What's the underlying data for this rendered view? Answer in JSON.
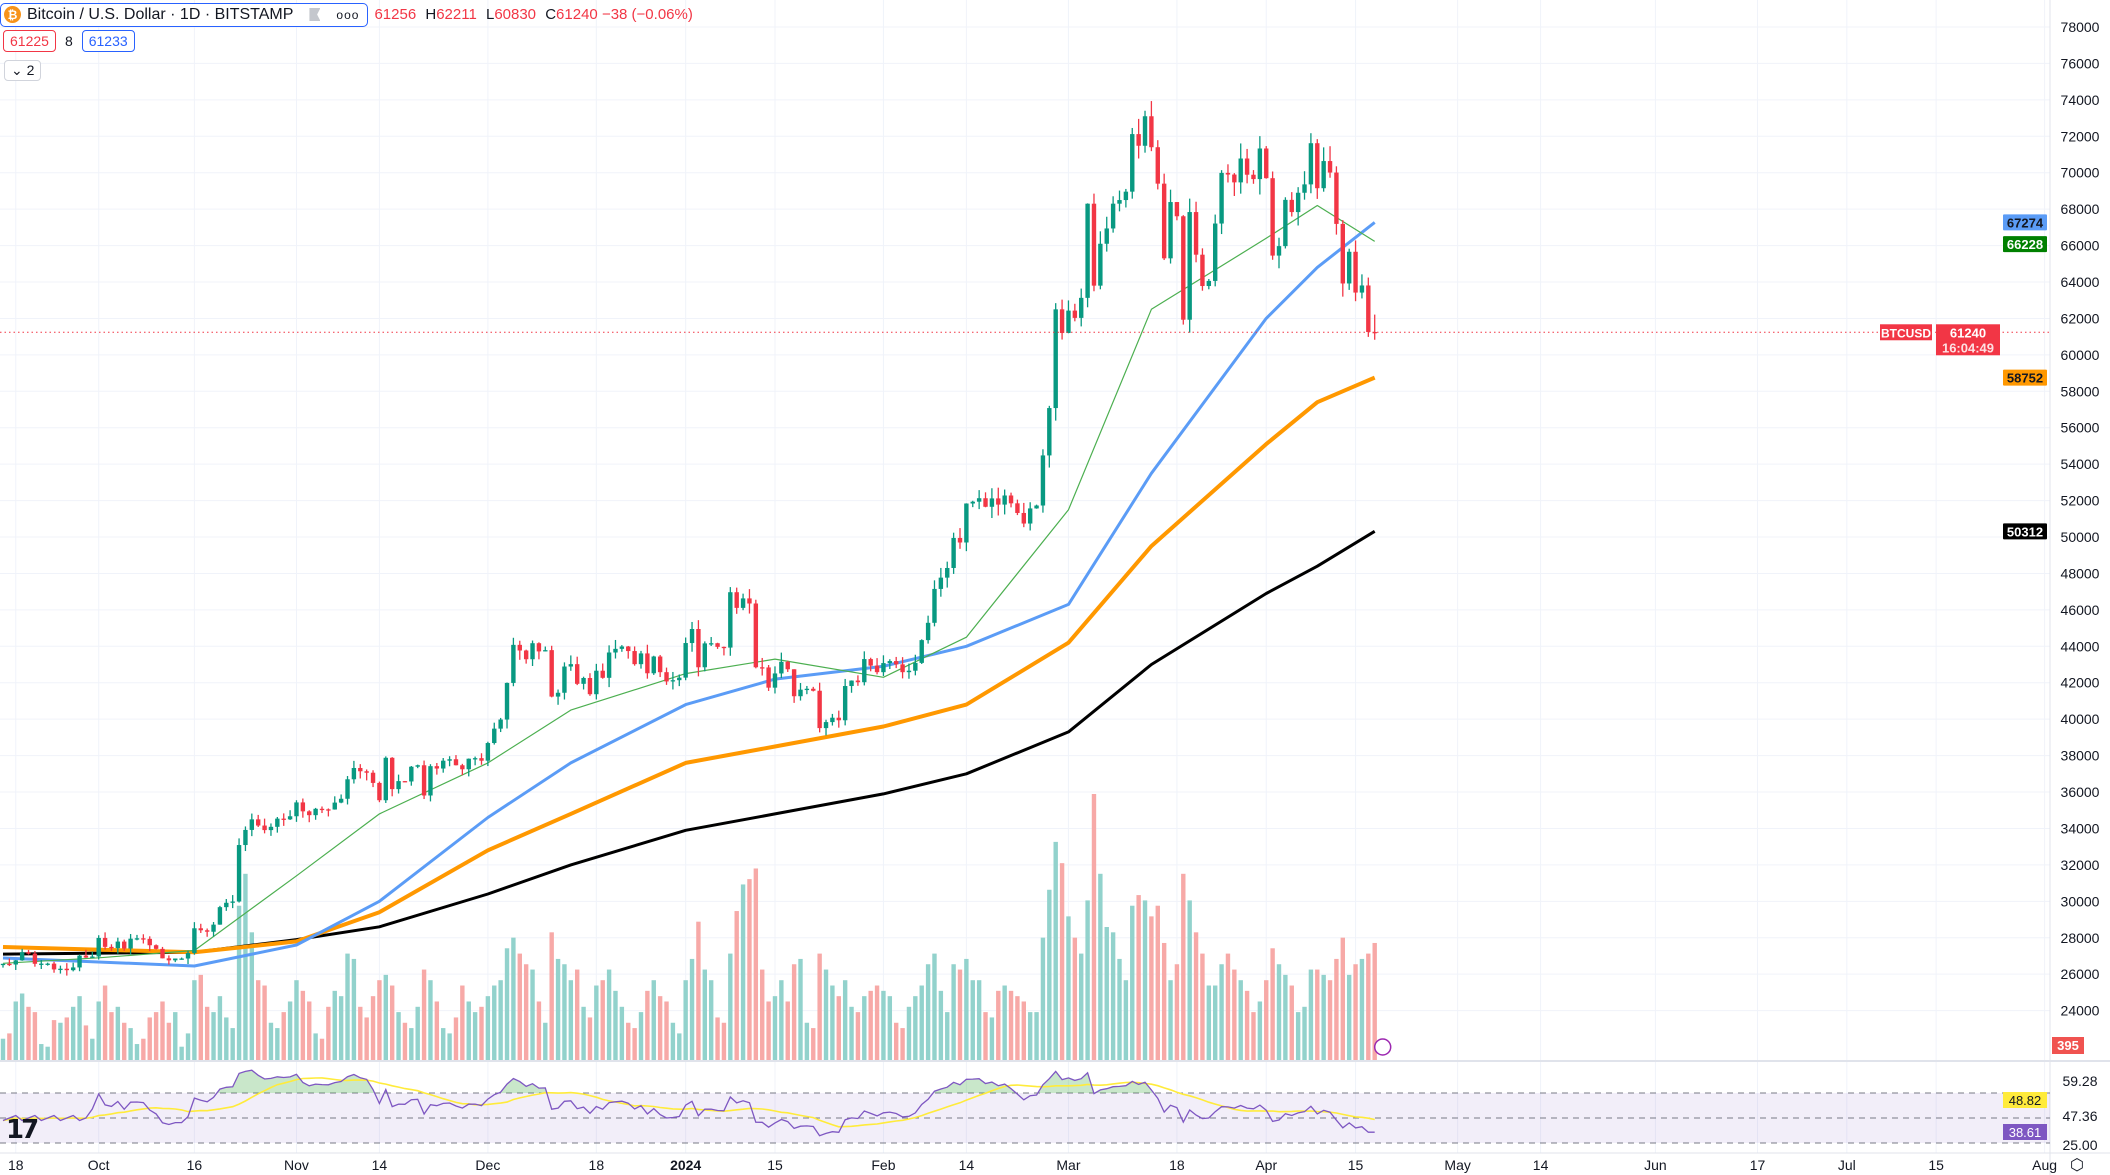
{
  "header": {
    "symbol_title": "Bitcoin / U.S. Dollar · 1D · BITSTAMP",
    "symbol_icon": "bitcoin-icon",
    "more_label": "ooo",
    "open": "61256",
    "high_label": "H",
    "high": "62211",
    "low_label": "L",
    "low": "60830",
    "close_label": "C",
    "close": "61240",
    "change": "−38 (−0.06%)",
    "sell_price": "61225",
    "spread": "8",
    "buy_price": "61233",
    "collapse_label": "2"
  },
  "colors": {
    "up": "#089981",
    "down": "#f23645",
    "vol_up": "#92d2cc",
    "vol_down": "#f7a9a7",
    "ma20": "#4caf50",
    "ma50": "#5b9cf6",
    "ma100": "#ff9800",
    "ma200": "#000000",
    "rsi": "#7e57c2",
    "rsi_ma": "#ffeb3b"
  },
  "price_axis": {
    "labels": [
      78000,
      76000,
      74000,
      72000,
      70000,
      68000,
      66000,
      64000,
      62000,
      60000,
      58000,
      56000,
      54000,
      52000,
      50000,
      48000,
      46000,
      44000,
      42000,
      40000,
      38000,
      36000,
      34000,
      32000,
      30000,
      28000,
      26000,
      24000
    ],
    "tags": {
      "ma50": "67274",
      "ma20": "66228",
      "symbol": "BTCUSD",
      "last_price": "61240",
      "countdown": "16:04:49",
      "ma100": "58752",
      "ma200": "50312",
      "volume": "395"
    }
  },
  "rsi_axis": {
    "labels": [
      "59.28",
      "47.36",
      "25.00"
    ],
    "tags": {
      "rsi_ma": "48.82",
      "rsi": "38.61"
    }
  },
  "time_axis": [
    {
      "label": "18",
      "date": "2023-09-18"
    },
    {
      "label": "Oct",
      "date": "2023-10-01"
    },
    {
      "label": "16",
      "date": "2023-10-16"
    },
    {
      "label": "Nov",
      "date": "2023-11-01"
    },
    {
      "label": "14",
      "date": "2023-11-14"
    },
    {
      "label": "Dec",
      "date": "2023-12-01"
    },
    {
      "label": "18",
      "date": "2023-12-18"
    },
    {
      "label": "2024",
      "date": "2024-01-01"
    },
    {
      "label": "15",
      "date": "2024-01-15"
    },
    {
      "label": "Feb",
      "date": "2024-02-01"
    },
    {
      "label": "14",
      "date": "2024-02-14"
    },
    {
      "label": "Mar",
      "date": "2024-03-01"
    },
    {
      "label": "18",
      "date": "2024-03-18"
    },
    {
      "label": "Apr",
      "date": "2024-04-01"
    },
    {
      "label": "15",
      "date": "2024-04-15"
    },
    {
      "label": "May",
      "date": "2024-05-01"
    },
    {
      "label": "14",
      "date": "2024-05-14"
    },
    {
      "label": "Jun",
      "date": "2024-06-01"
    },
    {
      "label": "17",
      "date": "2024-06-17"
    },
    {
      "label": "Jul",
      "date": "2024-07-01"
    },
    {
      "label": "15",
      "date": "2024-07-15"
    },
    {
      "label": "Aug",
      "date": "2024-08-01"
    }
  ],
  "chart_data": {
    "type": "candlestick",
    "start_date": "2023-09-16",
    "y_range": [
      22000,
      78000
    ],
    "closes": [
      26570,
      26530,
      26760,
      27210,
      27130,
      26570,
      26580,
      26580,
      26260,
      26300,
      26220,
      26370,
      27020,
      26910,
      26970,
      27990,
      27500,
      27430,
      27790,
      27410,
      27950,
      27970,
      27940,
      27590,
      27390,
      26870,
      26760,
      26860,
      26860,
      27160,
      28520,
      28410,
      28330,
      28720,
      29680,
      29920,
      29990,
      33090,
      33920,
      34500,
      34160,
      33910,
      34090,
      34540,
      34500,
      34670,
      35430,
      34940,
      34730,
      35080,
      35050,
      35040,
      35420,
      35630,
      36700,
      37320,
      37140,
      37060,
      36500,
      35550,
      37880,
      36160,
      36600,
      36580,
      37390,
      37470,
      35810,
      37420,
      37290,
      37720,
      37800,
      37470,
      37250,
      37830,
      37860,
      37720,
      38690,
      39480,
      39980,
      41990,
      44080,
      43770,
      43290,
      44170,
      43720,
      43790,
      41240,
      41450,
      42890,
      43020,
      41940,
      42260,
      41370,
      42660,
      42270,
      43660,
      43860,
      43990,
      43740,
      43020,
      43610,
      42520,
      43440,
      42580,
      42070,
      42140,
      42280,
      44180,
      44950,
      42850,
      44160,
      44170,
      43970,
      43930,
      46970,
      46110,
      46630,
      46350,
      42850,
      42840,
      41730,
      42510,
      43150,
      42740,
      41260,
      41620,
      41670,
      41560,
      39510,
      39840,
      40080,
      39940,
      41820,
      42120,
      42030,
      43300,
      42940,
      42580,
      43080,
      43190,
      43010,
      42580,
      42660,
      43090,
      44340,
      45290,
      47150,
      47770,
      48300,
      49950,
      49700,
      51840,
      51940,
      52130,
      51660,
      52120,
      51780,
      52280,
      51850,
      51320,
      50740,
      51570,
      51730,
      54480,
      57080,
      62500,
      61200,
      62430,
      62030,
      63130,
      68300,
      63800,
      66100,
      66940,
      68300,
      68500,
      68960,
      72120,
      71480,
      73100,
      71400,
      69400,
      65300,
      68390,
      67610,
      61930,
      67840,
      65500,
      63780,
      64060,
      67210,
      69990,
      69900,
      69470,
      70780,
      69890,
      69650,
      71330,
      69700,
      65450,
      65970,
      68510,
      67840,
      68900,
      69360,
      71620,
      69150,
      70640,
      70010,
      67190,
      63920,
      65660,
      63420,
      63810,
      61256,
      61240
    ],
    "volumes": [
      8,
      10,
      22,
      25,
      20,
      18,
      6,
      5,
      15,
      14,
      16,
      20,
      24,
      13,
      8,
      22,
      28,
      18,
      20,
      14,
      12,
      6,
      8,
      16,
      18,
      22,
      14,
      18,
      5,
      10,
      30,
      32,
      20,
      18,
      24,
      16,
      12,
      58,
      70,
      48,
      30,
      28,
      14,
      12,
      18,
      22,
      30,
      26,
      22,
      10,
      8,
      20,
      26,
      24,
      40,
      38,
      20,
      16,
      24,
      30,
      32,
      28,
      18,
      14,
      12,
      20,
      34,
      30,
      22,
      12,
      10,
      16,
      28,
      22,
      18,
      20,
      24,
      28,
      30,
      42,
      46,
      40,
      36,
      34,
      22,
      14,
      48,
      38,
      36,
      30,
      34,
      20,
      16,
      28,
      30,
      34,
      26,
      20,
      14,
      12,
      18,
      26,
      30,
      24,
      22,
      14,
      10,
      30,
      38,
      52,
      34,
      30,
      16,
      14,
      40,
      56,
      66,
      68,
      72,
      34,
      22,
      24,
      30,
      22,
      36,
      38,
      14,
      12,
      40,
      34,
      28,
      24,
      30,
      20,
      18,
      24,
      26,
      28,
      26,
      24,
      14,
      12,
      20,
      24,
      28,
      36,
      40,
      26,
      18,
      36,
      34,
      38,
      30,
      30,
      18,
      16,
      26,
      28,
      26,
      24,
      22,
      18,
      18,
      46,
      64,
      82,
      74,
      54,
      46,
      40,
      60,
      100,
      70,
      50,
      48,
      38,
      30,
      58,
      62,
      60,
      54,
      58,
      44,
      30,
      36,
      70,
      60,
      48,
      40,
      28,
      28,
      36,
      40,
      34,
      30,
      26,
      18,
      22,
      30,
      42,
      36,
      32,
      28,
      18,
      20,
      34,
      34,
      32,
      30,
      38,
      46,
      32,
      36,
      38,
      40,
      44
    ],
    "moving_averages": {
      "ma20": [
        [
          "2023-09-16",
          26600
        ],
        [
          "2023-10-01",
          26900
        ],
        [
          "2023-10-16",
          27300
        ],
        [
          "2023-11-01",
          31400
        ],
        [
          "2023-11-14",
          34800
        ],
        [
          "2023-12-01",
          37600
        ],
        [
          "2023-12-14",
          40500
        ],
        [
          "2024-01-01",
          42500
        ],
        [
          "2024-01-15",
          43300
        ],
        [
          "2024-02-01",
          42300
        ],
        [
          "2024-02-14",
          44500
        ],
        [
          "2024-03-01",
          51500
        ],
        [
          "2024-03-14",
          62500
        ],
        [
          "2024-04-01",
          66400
        ],
        [
          "2024-04-09",
          68200
        ],
        [
          "2024-04-18",
          66228
        ]
      ],
      "ma50": [
        [
          "2023-09-16",
          26890
        ],
        [
          "2023-10-16",
          26450
        ],
        [
          "2023-11-01",
          27600
        ],
        [
          "2023-11-14",
          30000
        ],
        [
          "2023-12-01",
          34600
        ],
        [
          "2023-12-14",
          37600
        ],
        [
          "2024-01-01",
          40800
        ],
        [
          "2024-01-15",
          42200
        ],
        [
          "2024-02-01",
          42900
        ],
        [
          "2024-02-14",
          44000
        ],
        [
          "2024-03-01",
          46300
        ],
        [
          "2024-03-14",
          53500
        ],
        [
          "2024-04-01",
          62000
        ],
        [
          "2024-04-09",
          64800
        ],
        [
          "2024-04-18",
          67274
        ]
      ],
      "ma100": [
        [
          "2023-09-16",
          27490
        ],
        [
          "2023-10-16",
          27200
        ],
        [
          "2023-11-01",
          27800
        ],
        [
          "2023-11-14",
          29400
        ],
        [
          "2023-12-01",
          32800
        ],
        [
          "2023-12-14",
          34800
        ],
        [
          "2024-01-01",
          37600
        ],
        [
          "2024-01-15",
          38500
        ],
        [
          "2024-02-01",
          39600
        ],
        [
          "2024-02-14",
          40800
        ],
        [
          "2024-03-01",
          44200
        ],
        [
          "2024-03-14",
          49500
        ],
        [
          "2024-04-01",
          55100
        ],
        [
          "2024-04-09",
          57400
        ],
        [
          "2024-04-18",
          58752
        ]
      ],
      "ma200": [
        [
          "2023-09-16",
          27100
        ],
        [
          "2023-10-16",
          27200
        ],
        [
          "2023-11-01",
          27900
        ],
        [
          "2023-11-14",
          28600
        ],
        [
          "2023-12-01",
          30400
        ],
        [
          "2023-12-14",
          32000
        ],
        [
          "2024-01-01",
          33900
        ],
        [
          "2024-01-15",
          34800
        ],
        [
          "2024-02-01",
          35900
        ],
        [
          "2024-02-14",
          37000
        ],
        [
          "2024-03-01",
          39300
        ],
        [
          "2024-03-14",
          43000
        ],
        [
          "2024-04-01",
          46900
        ],
        [
          "2024-04-09",
          48400
        ],
        [
          "2024-04-18",
          50312
        ]
      ]
    }
  }
}
